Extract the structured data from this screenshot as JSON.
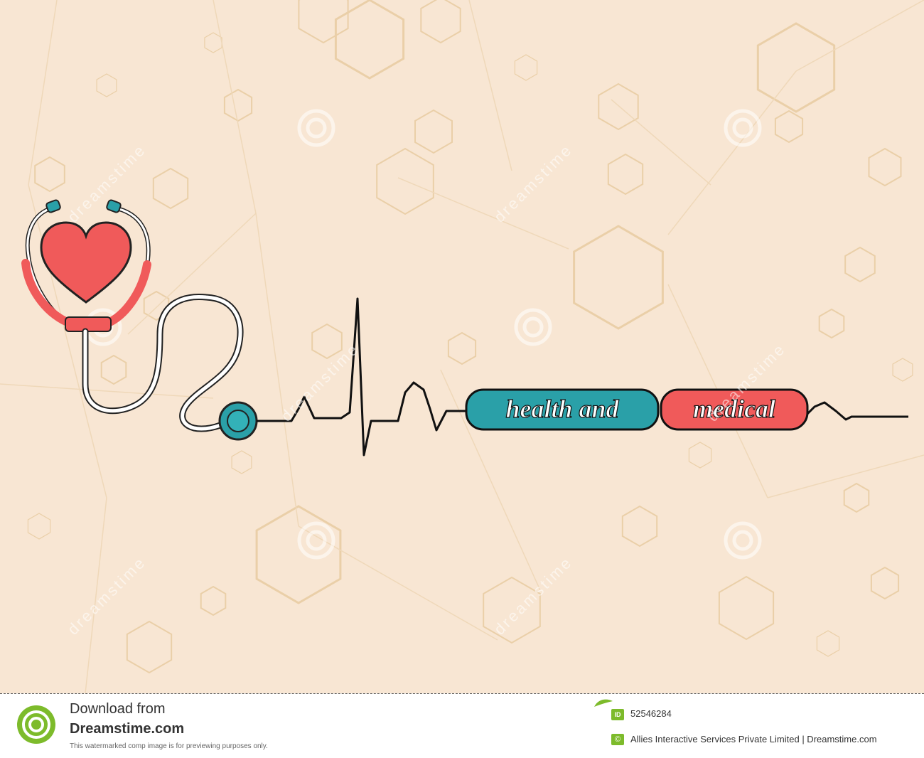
{
  "artwork": {
    "headline_part1": "health and",
    "headline_part2": "medical",
    "watermark_text": "dreamstime",
    "colors": {
      "background": "#f8e6d3",
      "hexagon_line": "#e8cda6",
      "heart_red": "#f05a5a",
      "teal": "#2aa0a8",
      "ecg_line": "#111111"
    },
    "icons": [
      "stethoscope-icon",
      "heart-icon",
      "ecg-line"
    ]
  },
  "footer": {
    "download_label": "Download from",
    "brand": "Dreamstime.com",
    "note": "This watermarked comp image is for previewing purposes only.",
    "id_badge": "ID",
    "image_id": "52546284",
    "copyright_badge": "©",
    "copyright_text": "Allies Interactive Services Private Limited | Dreamstime.com"
  }
}
